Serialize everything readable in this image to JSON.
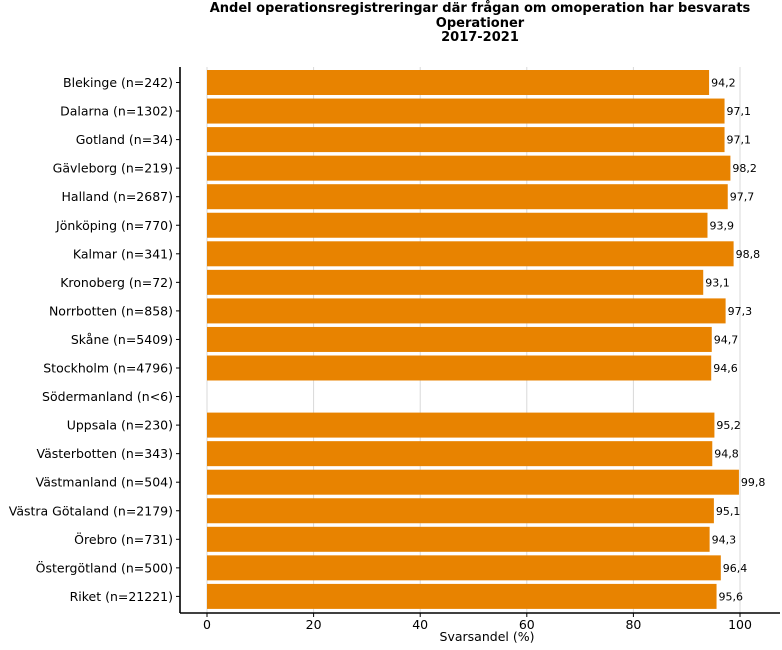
{
  "chart_data": {
    "type": "bar",
    "orientation": "horizontal",
    "title": [
      "Andel operationsregistreringar där frågan om omoperation har besvarats",
      "Operationer",
      "2017-2021"
    ],
    "xlabel": "Svarsandel (%)",
    "ylabel": "",
    "xlim": [
      -5,
      108
    ],
    "xticks": [
      0,
      20,
      40,
      60,
      80,
      100
    ],
    "grid": "vertical",
    "bar_color": "#E88300",
    "categories": [
      "Blekinge (n=242)",
      "Dalarna (n=1302)",
      "Gotland (n=34)",
      "Gävleborg (n=219)",
      "Halland (n=2687)",
      "Jönköping (n=770)",
      "Kalmar (n=341)",
      "Kronoberg (n=72)",
      "Norrbotten (n=858)",
      "Skåne (n=5409)",
      "Stockholm (n=4796)",
      "Södermanland (n<6)",
      "Uppsala (n=230)",
      "Västerbotten (n=343)",
      "Västmanland (n=504)",
      "Västra Götaland (n=2179)",
      "Örebro (n=731)",
      "Östergötland (n=500)",
      "Riket (n=21221)"
    ],
    "values": [
      94.2,
      97.1,
      97.1,
      98.2,
      97.7,
      93.9,
      98.8,
      93.1,
      97.3,
      94.7,
      94.6,
      null,
      95.2,
      94.8,
      99.8,
      95.1,
      94.3,
      96.4,
      95.6
    ],
    "value_labels": [
      "94,2",
      "97,1",
      "97,1",
      "98,2",
      "97,7",
      "93,9",
      "98,8",
      "93,1",
      "97,3",
      "94,7",
      "94,6",
      "",
      "95,2",
      "94,8",
      "99,8",
      "95,1",
      "94,3",
      "96,4",
      "95,6"
    ]
  }
}
